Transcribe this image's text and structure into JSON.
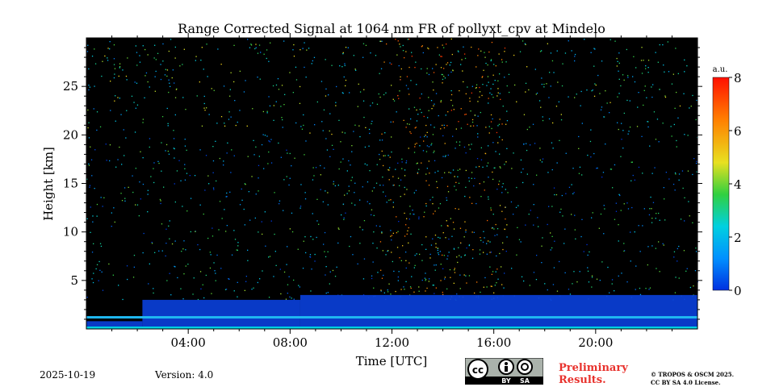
{
  "chart_data": {
    "type": "heatmap",
    "title": "Range Corrected Signal at 1064 nm FR of pollyxt_cpv at Mindelo",
    "xlabel": "Time [UTC]",
    "ylabel": "Height [km]",
    "xlim": [
      0,
      24
    ],
    "ylim": [
      0,
      30
    ],
    "x_ticks": [
      {
        "value": 4,
        "label": "04:00"
      },
      {
        "value": 8,
        "label": "08:00"
      },
      {
        "value": 12,
        "label": "12:00"
      },
      {
        "value": 16,
        "label": "16:00"
      },
      {
        "value": 20,
        "label": "20:00"
      }
    ],
    "y_ticks": [
      {
        "value": 5,
        "label": "5"
      },
      {
        "value": 10,
        "label": "10"
      },
      {
        "value": 15,
        "label": "15"
      },
      {
        "value": 20,
        "label": "20"
      },
      {
        "value": 25,
        "label": "25"
      }
    ],
    "colorbar": {
      "unit": "a.u.",
      "range": [
        0,
        8
      ],
      "ticks": [
        {
          "value": 0,
          "label": "0"
        },
        {
          "value": 2,
          "label": "2"
        },
        {
          "value": 4,
          "label": "4"
        },
        {
          "value": 6,
          "label": "6"
        },
        {
          "value": 8,
          "label": "8"
        }
      ],
      "colormap": "jet",
      "background_color": "#000000"
    },
    "features": {
      "boundary_layer_top_km": [
        {
          "time_range": [
            0,
            2.2
          ],
          "height": 0.8
        },
        {
          "time_range": [
            2.2,
            8.4
          ],
          "height": 3.0
        },
        {
          "time_range": [
            8.4,
            24
          ],
          "height": 3.5
        }
      ],
      "bright_near_surface_layer_km": 1.2,
      "enhanced_noise_period_hours": [
        11.5,
        16.5
      ]
    }
  },
  "footer": {
    "date": "2025-10-19",
    "version": "Version: 4.0",
    "preliminary_line1": "Preliminary",
    "preliminary_line2": "Results.",
    "copyright_line1": "© TROPOS & OSCM 2025.",
    "copyright_line2": "CC BY SA 4.0 License.",
    "cc_badge": {
      "cc": "cc",
      "by": "BY",
      "sa": "SA"
    }
  }
}
